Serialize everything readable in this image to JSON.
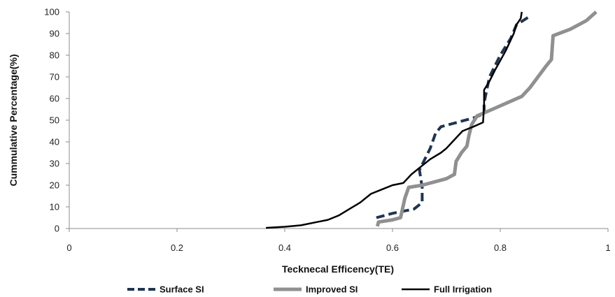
{
  "chart_data": {
    "type": "line",
    "xlabel": "Tecknecal Efficency(TE)",
    "ylabel": "Cummulative Percentage(%)",
    "xlim": [
      0,
      1
    ],
    "ylim": [
      0,
      100
    ],
    "x_ticks": [
      "0",
      "0.2",
      "0.4",
      "0.6",
      "0.8",
      "1"
    ],
    "y_ticks": [
      "0",
      "10",
      "20",
      "30",
      "40",
      "50",
      "60",
      "70",
      "80",
      "90",
      "100"
    ],
    "grid": false,
    "legend_position": "bottom",
    "series": [
      {
        "name": "Surface SI",
        "color": "#1f3550",
        "style": "dashed",
        "points": [
          [
            0.57,
            5
          ],
          [
            0.6,
            7
          ],
          [
            0.64,
            9
          ],
          [
            0.655,
            12
          ],
          [
            0.655,
            19
          ],
          [
            0.65,
            27
          ],
          [
            0.66,
            32
          ],
          [
            0.67,
            37
          ],
          [
            0.68,
            44
          ],
          [
            0.69,
            47
          ],
          [
            0.72,
            49
          ],
          [
            0.75,
            51
          ],
          [
            0.77,
            53
          ],
          [
            0.77,
            58
          ],
          [
            0.78,
            70
          ],
          [
            0.8,
            80
          ],
          [
            0.82,
            88
          ],
          [
            0.83,
            94
          ],
          [
            0.855,
            98
          ]
        ]
      },
      {
        "name": "Improved SI",
        "color": "#909090",
        "style": "solid",
        "points": [
          [
            0.572,
            1
          ],
          [
            0.574,
            3
          ],
          [
            0.6,
            4
          ],
          [
            0.615,
            5
          ],
          [
            0.623,
            14
          ],
          [
            0.63,
            19
          ],
          [
            0.655,
            20
          ],
          [
            0.685,
            22
          ],
          [
            0.7,
            23
          ],
          [
            0.715,
            25
          ],
          [
            0.718,
            31
          ],
          [
            0.728,
            35
          ],
          [
            0.738,
            38
          ],
          [
            0.742,
            43
          ],
          [
            0.747,
            48
          ],
          [
            0.757,
            52
          ],
          [
            0.785,
            55
          ],
          [
            0.84,
            61
          ],
          [
            0.855,
            65
          ],
          [
            0.87,
            70
          ],
          [
            0.885,
            75
          ],
          [
            0.895,
            78
          ],
          [
            0.898,
            89
          ],
          [
            0.93,
            92
          ],
          [
            0.96,
            96
          ],
          [
            0.978,
            100
          ]
        ]
      },
      {
        "name": "Full Irrigation",
        "color": "#000000",
        "style": "solid",
        "points": [
          [
            0.365,
            0.3
          ],
          [
            0.4,
            0.8
          ],
          [
            0.43,
            1.5
          ],
          [
            0.46,
            3
          ],
          [
            0.48,
            4
          ],
          [
            0.5,
            6
          ],
          [
            0.52,
            9
          ],
          [
            0.54,
            12
          ],
          [
            0.56,
            16
          ],
          [
            0.58,
            18
          ],
          [
            0.6,
            20
          ],
          [
            0.62,
            21
          ],
          [
            0.635,
            25
          ],
          [
            0.65,
            28
          ],
          [
            0.67,
            32
          ],
          [
            0.69,
            35
          ],
          [
            0.7,
            37
          ],
          [
            0.715,
            41
          ],
          [
            0.73,
            45
          ],
          [
            0.75,
            47
          ],
          [
            0.768,
            49
          ],
          [
            0.77,
            57
          ],
          [
            0.77,
            64
          ],
          [
            0.78,
            68
          ],
          [
            0.79,
            73
          ],
          [
            0.81,
            82
          ],
          [
            0.825,
            90
          ],
          [
            0.83,
            94
          ],
          [
            0.838,
            97
          ],
          [
            0.84,
            100
          ]
        ]
      }
    ]
  }
}
